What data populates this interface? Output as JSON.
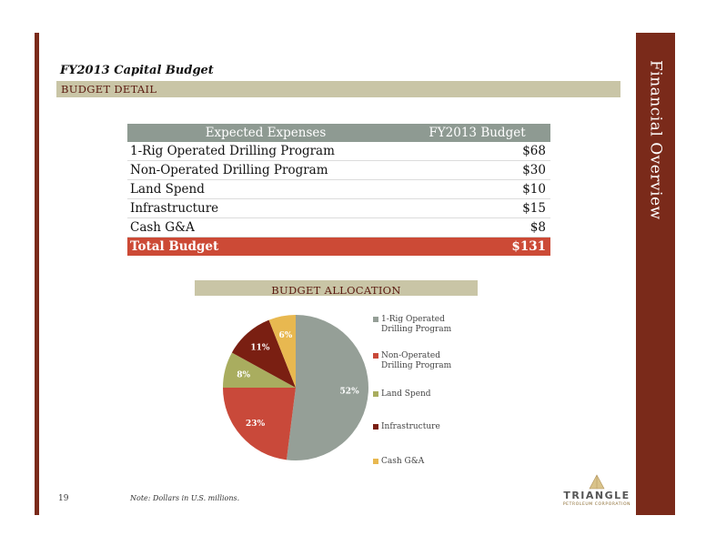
{
  "slide": {
    "title": "FY2013 Capital Budget",
    "section_label": "BUDGET DETAIL",
    "side_title": "Financial Overview",
    "page_number": "19",
    "note": "Note: Dollars in U.S. millions."
  },
  "table": {
    "headers": [
      "Expected Expenses",
      "FY2013 Budget"
    ],
    "rows": [
      {
        "label": "1-Rig Operated Drilling Program",
        "value": "$68"
      },
      {
        "label": "Non-Operated Drilling Program",
        "value": "$30"
      },
      {
        "label": "Land Spend",
        "value": "$10"
      },
      {
        "label": "Infrastructure",
        "value": "$15"
      },
      {
        "label": "Cash G&A",
        "value": "$8"
      }
    ],
    "total": {
      "label": "Total Budget",
      "value": "$131"
    }
  },
  "allocation_label": "BUDGET ALLOCATION",
  "logo": {
    "word": "TRIANGLE",
    "sub": "PETROLEUM CORPORATION"
  },
  "colors": {
    "accent_dark_red": "#7a2a1a",
    "band_tan": "#c9c5a6",
    "header_gray": "#8e9a92",
    "total_red": "#cc4a36"
  },
  "chart_data": {
    "type": "pie",
    "categories": [
      "1-Rig Operated Drilling Program",
      "Non-Operated Drilling Program",
      "Land Spend",
      "Infrastructure",
      "Cash G&A"
    ],
    "values": [
      52,
      23,
      8,
      11,
      6
    ],
    "labels": [
      "52%",
      "23%",
      "8%",
      "11%",
      "6%"
    ],
    "colors": [
      "#959f97",
      "#c9493a",
      "#a9ad5f",
      "#7a1f12",
      "#e8b850"
    ],
    "legend_placement": "right"
  }
}
